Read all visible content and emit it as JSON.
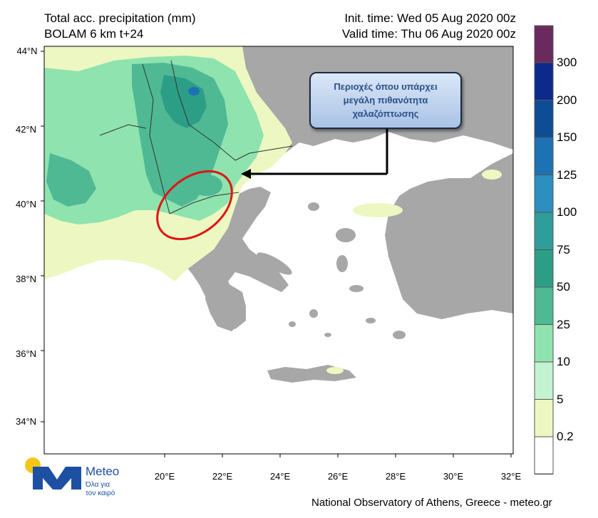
{
  "header": {
    "title_line1": "Total acc. precipitation (mm)",
    "title_line2": "BOLAM 6 km t+24",
    "init_time": "Init. time: Wed 05 Aug 2020 00z",
    "valid_time": "Valid time: Thu 06 Aug 2020 00z"
  },
  "map": {
    "lat_labels": [
      "44°N",
      "42°N",
      "40°N",
      "38°N",
      "36°N",
      "34°N"
    ],
    "lon_labels": [
      "20°E",
      "22°E",
      "24°E",
      "26°E",
      "28°E",
      "30°E",
      "32°E"
    ],
    "callout_lines": [
      "Περιοχές όπου υπάρχει",
      "μεγάλη πιθανότητα",
      "χαλαζόπτωσης"
    ],
    "highlight": "hail-risk-ellipse"
  },
  "colorbar": {
    "levels": [
      {
        "label": "300",
        "color": "#0b2a8c"
      },
      {
        "label": "200",
        "color": "#0d4d96"
      },
      {
        "label": "150",
        "color": "#1c72b3"
      },
      {
        "label": "125",
        "color": "#2c8fbf"
      },
      {
        "label": "100",
        "color": "#2f9e9a"
      },
      {
        "label": "75",
        "color": "#2d9e86"
      },
      {
        "label": "50",
        "color": "#4fb994"
      },
      {
        "label": "25",
        "color": "#8fe3ae"
      },
      {
        "label": "10",
        "color": "#c3f3cf"
      },
      {
        "label": "5",
        "color": "#ecf7c2"
      },
      {
        "label": "0.2",
        "color": "#ffffff"
      }
    ],
    "top_color": "#6b2a5e"
  },
  "colors": {
    "land": "#a7a7a7",
    "sea": "#ffffff",
    "light_rain": "#ecf7c2",
    "moderate_rain": "#8fe3ae",
    "heavy_rain": "#4fb994",
    "ellipse": "#e01414"
  },
  "logo": {
    "word": "Meteo",
    "tagline_1": "Όλα για",
    "tagline_2": "τον καιρό"
  },
  "footer": "National Observatory of Athens, Greece - meteo.gr"
}
